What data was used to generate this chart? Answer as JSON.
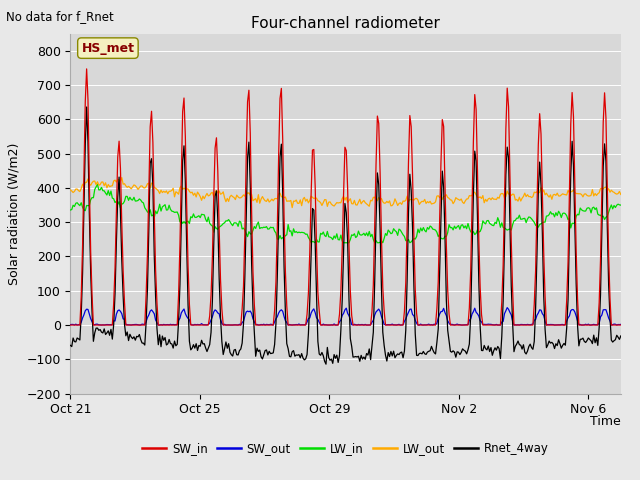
{
  "title": "Four-channel radiometer",
  "top_left_text": "No data for f_Rnet",
  "ylabel": "Solar radiation (W/m2)",
  "xlabel": "Time",
  "annotation_box": "HS_met",
  "ylim": [
    -200,
    850
  ],
  "yticks": [
    -200,
    -100,
    0,
    100,
    200,
    300,
    400,
    500,
    600,
    700,
    800
  ],
  "fig_bg_color": "#e8e8e8",
  "plot_bg_color": "#d8d8d8",
  "colors": {
    "SW_in": "#dd0000",
    "SW_out": "#0000dd",
    "LW_in": "#00dd00",
    "LW_out": "#ffaa00",
    "Rnet_4way": "#000000"
  },
  "legend_labels": [
    "SW_in",
    "SW_out",
    "LW_in",
    "LW_out",
    "Rnet_4way"
  ],
  "x_tick_labels": [
    "Oct 21",
    "Oct 25",
    "Oct 29",
    "Nov 2",
    "Nov 6"
  ],
  "x_tick_positions": [
    0,
    4,
    8,
    12,
    16
  ],
  "n_days": 17,
  "hours_per_day": 24
}
